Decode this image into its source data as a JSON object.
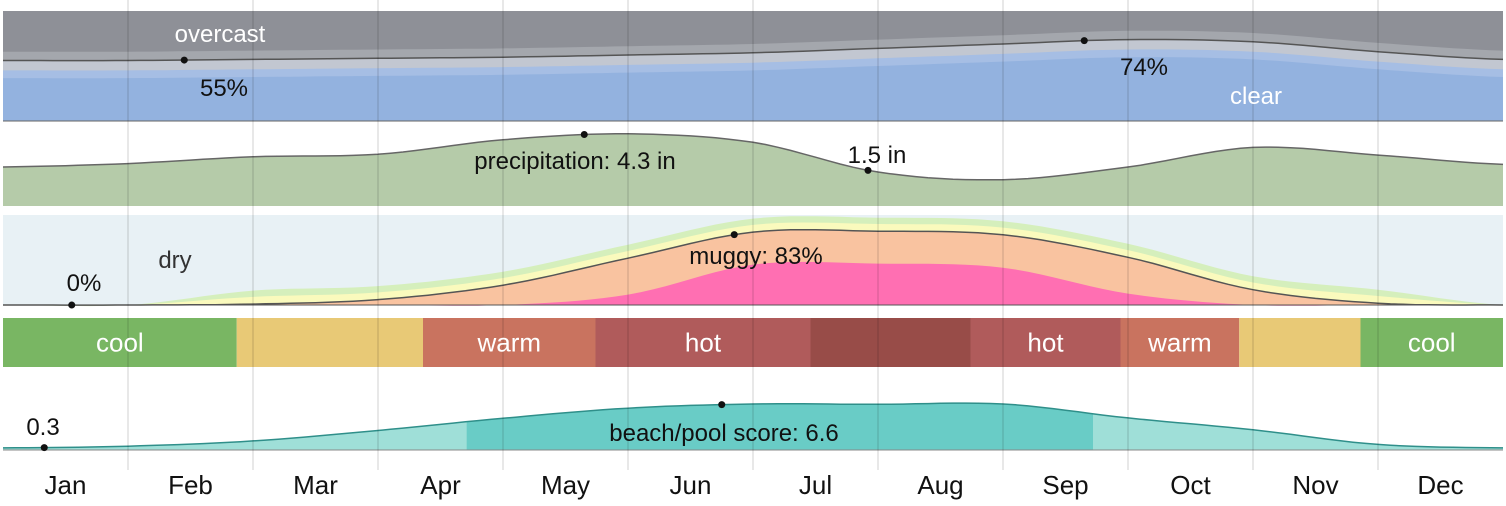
{
  "chart_data": [
    {
      "type": "area",
      "name": "cloud-cover",
      "x": [
        1,
        2,
        3,
        4,
        5,
        6,
        7,
        8,
        9,
        10,
        11,
        12,
        13
      ],
      "percent_clear": [
        55,
        55,
        56,
        57,
        58,
        60,
        62,
        66,
        70,
        74,
        72,
        63,
        56
      ],
      "labels": {
        "top": "overcast",
        "bottom": "clear",
        "min": "55%",
        "max": "74%"
      },
      "markers": [
        {
          "x": 2.45,
          "value": 55
        },
        {
          "x": 9.65,
          "value": 74
        }
      ],
      "colors": {
        "overcast": "#8e9097",
        "mostly_cloudy": "#a4a7ad",
        "partly_cloudy": "#c2c7d1",
        "mostly_clear": "#a6bee4",
        "clear": "#93b2df"
      }
    },
    {
      "type": "area",
      "name": "precipitation",
      "x": [
        1,
        2,
        3,
        4,
        5,
        6,
        7,
        8,
        9,
        10,
        11,
        12,
        13
      ],
      "inches": [
        2.3,
        2.5,
        2.9,
        3.05,
        3.9,
        4.25,
        3.75,
        2.0,
        1.55,
        2.3,
        3.45,
        3.0,
        2.45
      ],
      "labels": {
        "max": "precipitation: 4.3 in",
        "min": "1.5 in"
      },
      "markers": [
        {
          "x": 5.65,
          "value": 4.3
        },
        {
          "x": 7.92,
          "value": 1.5
        }
      ],
      "colors": {
        "fill": "#b5cba9",
        "line": "#666666"
      }
    },
    {
      "type": "area",
      "name": "humidity-comfort",
      "x": [
        1,
        2,
        3,
        4,
        5,
        6,
        7,
        8,
        9,
        10,
        11,
        12,
        13
      ],
      "percent_muggy": [
        0,
        0,
        1,
        6,
        22,
        52,
        81,
        82,
        78,
        53,
        17,
        2,
        0
      ],
      "labels": {
        "dry": "dry",
        "min": "0%",
        "max": "muggy: 83%"
      },
      "markers": [
        {
          "x": 1.55,
          "value": 0
        },
        {
          "x": 6.85,
          "value": 83
        }
      ],
      "colors": {
        "dry": "#e8f1f5",
        "comfortable": "#d5efbc",
        "humid": "#fafabd",
        "muggy": "#f9c3a0",
        "oppressive": "#ff6fb2",
        "line": "#555555"
      }
    },
    {
      "type": "bar",
      "name": "temperature-bands",
      "bands": [
        {
          "start": 1.0,
          "end": 2.87,
          "label": "cool",
          "color": "#79b663"
        },
        {
          "start": 2.87,
          "end": 4.36,
          "label": "",
          "color": "#e8c976"
        },
        {
          "start": 4.36,
          "end": 5.74,
          "label": "warm",
          "color": "#c9735f"
        },
        {
          "start": 5.74,
          "end": 7.46,
          "label": "hot",
          "color": "#b05b5b"
        },
        {
          "start": 7.46,
          "end": 8.74,
          "label": "",
          "color": "#984c48"
        },
        {
          "start": 8.74,
          "end": 9.94,
          "label": "hot",
          "color": "#b05b5b"
        },
        {
          "start": 9.94,
          "end": 10.89,
          "label": "warm",
          "color": "#c9735f"
        },
        {
          "start": 10.89,
          "end": 11.86,
          "label": "",
          "color": "#e8c976"
        },
        {
          "start": 11.86,
          "end": 13.0,
          "label": "cool",
          "color": "#79b663"
        }
      ]
    },
    {
      "type": "area",
      "name": "beach-pool-score",
      "x": [
        1,
        2,
        3,
        4,
        5,
        6,
        7,
        8,
        9,
        10,
        11,
        12,
        13
      ],
      "score": [
        0.3,
        0.55,
        1.3,
        2.8,
        4.55,
        6.0,
        6.6,
        6.55,
        6.6,
        4.6,
        2.9,
        0.8,
        0.3
      ],
      "labels": {
        "min": "0.3",
        "max": "beach/pool score: 6.6"
      },
      "markers": [
        {
          "x": 1.33,
          "value": 0.3
        },
        {
          "x": 6.75,
          "value": 6.6
        }
      ],
      "peak_season": [
        4.71,
        9.72
      ],
      "colors": {
        "fill": "#9fdfd8",
        "peak": "#69ccc6",
        "line": "#2f8f8a"
      }
    }
  ],
  "months": [
    "Jan",
    "Feb",
    "Mar",
    "Apr",
    "May",
    "Jun",
    "Jul",
    "Aug",
    "Sep",
    "Oct",
    "Nov",
    "Dec"
  ]
}
